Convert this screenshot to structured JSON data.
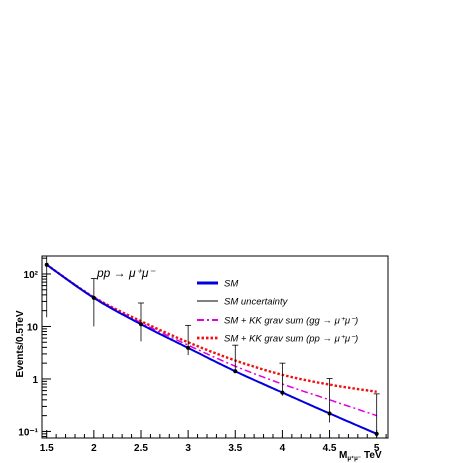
{
  "chart_data": {
    "type": "line",
    "title": "",
    "annotation": "pp → μ⁺μ⁻",
    "xlabel": "M_μ⁺μ⁻ TeV",
    "xlabel_main": "M",
    "xlabel_sub": "μ⁺μ⁻",
    "xlabel_unit": "TeV",
    "ylabel": "Events/0.5TeV",
    "x_scale": "linear",
    "y_scale": "log",
    "xlim": [
      1.45,
      5.12
    ],
    "ylim": [
      0.075,
      220
    ],
    "x_ticks": [
      1.5,
      2,
      2.5,
      3,
      3.5,
      4,
      4.5,
      5
    ],
    "x_tick_labels": [
      "1.5",
      "2",
      "2.5",
      "3",
      "3.5",
      "4",
      "4.5",
      "5"
    ],
    "y_ticks": [
      0.1,
      1,
      10,
      100
    ],
    "y_tick_labels": [
      "10⁻¹",
      "1",
      "10",
      "10²"
    ],
    "grid": false,
    "legend_position": "center-right",
    "x": [
      1.5,
      2.0,
      2.5,
      3.0,
      3.5,
      4.0,
      4.5,
      5.0
    ],
    "series": [
      {
        "name": "SM",
        "style": "solid",
        "color": "#0000dd",
        "values": [
          150,
          35,
          11,
          3.9,
          1.4,
          0.55,
          0.22,
          0.09
        ]
      },
      {
        "name": "SM uncertainty",
        "style": "errorbar",
        "color": "#000000",
        "values": [
          150,
          35,
          11,
          3.9,
          1.4,
          0.55,
          0.22,
          0.09
        ],
        "err_low": [
          135,
          25,
          5.8,
          1.05,
          0.072,
          0.072,
          0.072,
          0.072
        ],
        "err_high": [
          170,
          47,
          17,
          6.6,
          3.0,
          1.45,
          0.8,
          0.43
        ]
      },
      {
        "name": "SM + KK grav sum (gg → μ⁺μ⁻)",
        "style": "dash-dot",
        "color": "#e000e0",
        "values": [
          150,
          36,
          11.8,
          4.4,
          1.75,
          0.8,
          0.4,
          0.2
        ]
      },
      {
        "name": "SM + KK grav sum (pp → μ⁺μ⁻)",
        "style": "dotted",
        "color": "#ee1111",
        "values": [
          150,
          36,
          12.6,
          5.0,
          2.25,
          1.2,
          0.78,
          0.57
        ]
      }
    ]
  }
}
